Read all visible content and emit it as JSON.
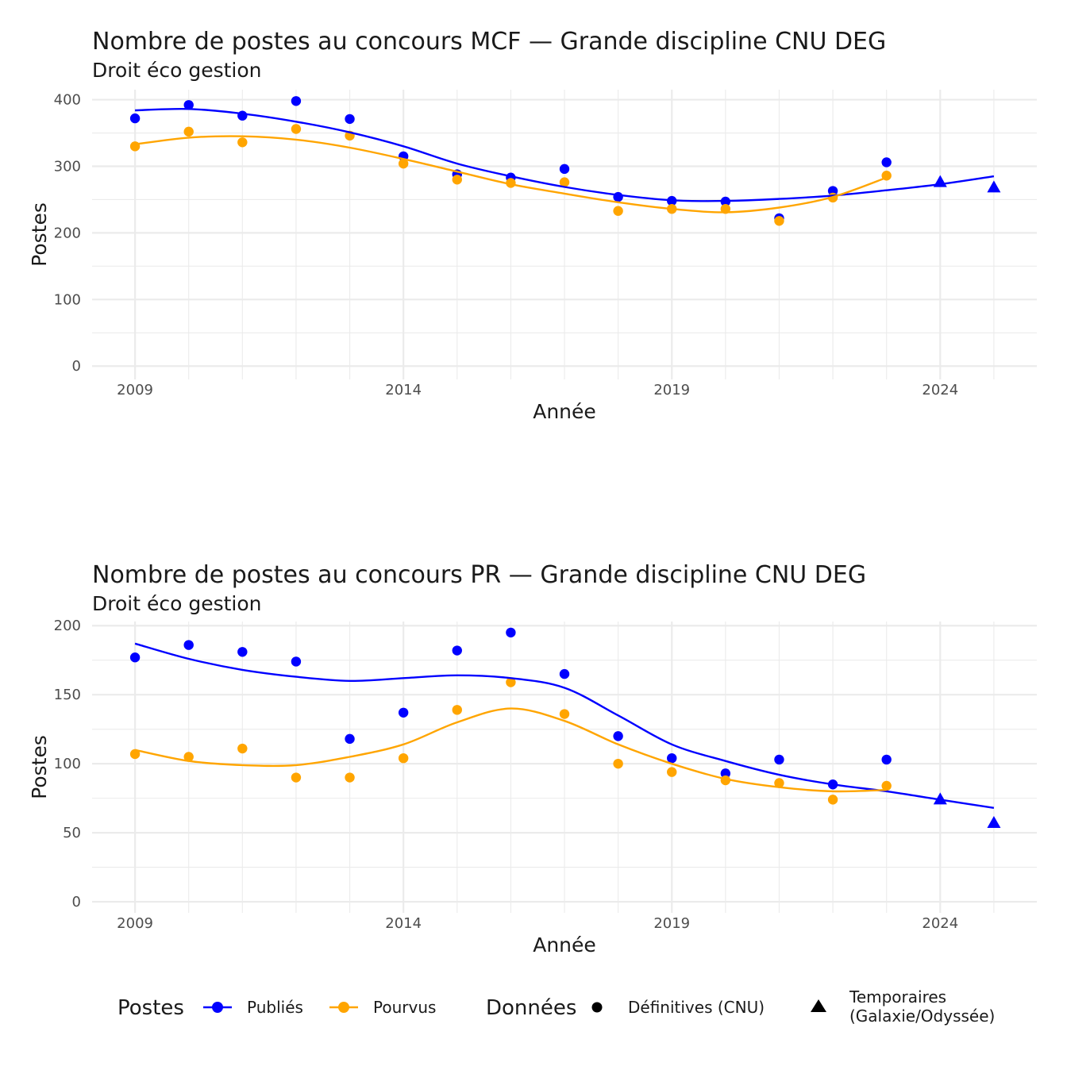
{
  "legend": {
    "color_title": "Postes",
    "color_items": [
      {
        "label": "Publiés",
        "color": "#0000ff"
      },
      {
        "label": "Pourvus",
        "color": "#ffa500"
      }
    ],
    "shape_title": "Données",
    "shape_items": [
      {
        "label": "Définitives (CNU)",
        "shape": "circle"
      },
      {
        "label_lines": [
          "Temporaires",
          "(Galaxie/Odyssée)"
        ],
        "shape": "triangle"
      }
    ]
  },
  "chart_data": [
    {
      "type": "scatter",
      "title": "Nombre de postes au concours MCF —  Grande discipline CNU DEG",
      "subtitle": "Droit éco gestion",
      "xlabel": "Année",
      "ylabel": "Postes",
      "xlim": [
        2008.2,
        2025.8
      ],
      "ylim": [
        -20,
        415
      ],
      "x_ticks": [
        2009,
        2014,
        2019,
        2024
      ],
      "y_ticks": [
        0,
        100,
        200,
        300,
        400
      ],
      "grid": true,
      "smooth": true,
      "series": [
        {
          "name": "Publiés",
          "color": "#0000ff",
          "points": [
            [
              2009,
              372
            ],
            [
              2010,
              392
            ],
            [
              2011,
              376
            ],
            [
              2012,
              398
            ],
            [
              2013,
              371
            ],
            [
              2014,
              315
            ],
            [
              2015,
              288
            ],
            [
              2016,
              283
            ],
            [
              2017,
              296
            ],
            [
              2018,
              254
            ],
            [
              2019,
              248
            ],
            [
              2020,
              247
            ],
            [
              2021,
              222
            ],
            [
              2022,
              263
            ],
            [
              2023,
              306
            ]
          ],
          "temporary_points": [
            [
              2024,
              276
            ],
            [
              2025,
              268
            ]
          ],
          "smooth_line": [
            [
              2009,
              384
            ],
            [
              2010,
              386
            ],
            [
              2011,
              379
            ],
            [
              2012,
              367
            ],
            [
              2013,
              351
            ],
            [
              2014,
              330
            ],
            [
              2015,
              304
            ],
            [
              2016,
              285
            ],
            [
              2017,
              269
            ],
            [
              2018,
              257
            ],
            [
              2019,
              249
            ],
            [
              2020,
              248
            ],
            [
              2021,
              251
            ],
            [
              2022,
              256
            ],
            [
              2023,
              264
            ],
            [
              2024,
              273
            ],
            [
              2025,
              285
            ]
          ]
        },
        {
          "name": "Pourvus",
          "color": "#ffa500",
          "points": [
            [
              2009,
              330
            ],
            [
              2010,
              352
            ],
            [
              2011,
              336
            ],
            [
              2012,
              356
            ],
            [
              2013,
              346
            ],
            [
              2014,
              304
            ],
            [
              2015,
              280
            ],
            [
              2016,
              275
            ],
            [
              2017,
              276
            ],
            [
              2018,
              233
            ],
            [
              2019,
              236
            ],
            [
              2020,
              236
            ],
            [
              2021,
              218
            ],
            [
              2022,
              253
            ],
            [
              2023,
              286
            ]
          ],
          "smooth_line": [
            [
              2009,
              333
            ],
            [
              2010,
              343
            ],
            [
              2011,
              345
            ],
            [
              2012,
              340
            ],
            [
              2013,
              328
            ],
            [
              2014,
              311
            ],
            [
              2015,
              292
            ],
            [
              2016,
              273
            ],
            [
              2017,
              259
            ],
            [
              2018,
              246
            ],
            [
              2019,
              236
            ],
            [
              2020,
              231
            ],
            [
              2021,
              238
            ],
            [
              2022,
              254
            ],
            [
              2023,
              283
            ]
          ]
        }
      ]
    },
    {
      "type": "scatter",
      "title": "Nombre de postes au concours PR —  Grande discipline CNU DEG",
      "subtitle": "Droit éco gestion",
      "xlabel": "Année",
      "ylabel": "Postes",
      "xlim": [
        2008.2,
        2025.8
      ],
      "ylim": [
        -8,
        203
      ],
      "x_ticks": [
        2009,
        2014,
        2019,
        2024
      ],
      "y_ticks": [
        0,
        50,
        100,
        150,
        200
      ],
      "grid": true,
      "smooth": true,
      "series": [
        {
          "name": "Publiés",
          "color": "#0000ff",
          "points": [
            [
              2009,
              177
            ],
            [
              2010,
              186
            ],
            [
              2011,
              181
            ],
            [
              2012,
              174
            ],
            [
              2013,
              118
            ],
            [
              2014,
              137
            ],
            [
              2015,
              182
            ],
            [
              2016,
              195
            ],
            [
              2017,
              165
            ],
            [
              2018,
              120
            ],
            [
              2019,
              104
            ],
            [
              2020,
              93
            ],
            [
              2021,
              103
            ],
            [
              2022,
              85
            ],
            [
              2023,
              103
            ]
          ],
          "temporary_points": [
            [
              2024,
              74
            ],
            [
              2025,
              57
            ]
          ],
          "smooth_line": [
            [
              2009,
              187
            ],
            [
              2010,
              176
            ],
            [
              2011,
              168
            ],
            [
              2012,
              163
            ],
            [
              2013,
              160
            ],
            [
              2014,
              162
            ],
            [
              2015,
              164
            ],
            [
              2016,
              162
            ],
            [
              2017,
              155
            ],
            [
              2018,
              135
            ],
            [
              2019,
              114
            ],
            [
              2020,
              102
            ],
            [
              2021,
              92
            ],
            [
              2022,
              85
            ],
            [
              2023,
              80
            ],
            [
              2024,
              74
            ],
            [
              2025,
              68
            ]
          ]
        },
        {
          "name": "Pourvus",
          "color": "#ffa500",
          "points": [
            [
              2009,
              107
            ],
            [
              2010,
              105
            ],
            [
              2011,
              111
            ],
            [
              2012,
              90
            ],
            [
              2013,
              90
            ],
            [
              2014,
              104
            ],
            [
              2015,
              139
            ],
            [
              2016,
              159
            ],
            [
              2017,
              136
            ],
            [
              2018,
              100
            ],
            [
              2019,
              94
            ],
            [
              2020,
              88
            ],
            [
              2021,
              86
            ],
            [
              2022,
              74
            ],
            [
              2023,
              84
            ]
          ],
          "smooth_line": [
            [
              2009,
              110
            ],
            [
              2010,
              102
            ],
            [
              2011,
              99
            ],
            [
              2012,
              99
            ],
            [
              2013,
              105
            ],
            [
              2014,
              114
            ],
            [
              2015,
              130
            ],
            [
              2016,
              140
            ],
            [
              2017,
              131
            ],
            [
              2018,
              114
            ],
            [
              2019,
              100
            ],
            [
              2020,
              89
            ],
            [
              2021,
              83
            ],
            [
              2022,
              80
            ],
            [
              2023,
              81
            ]
          ]
        }
      ]
    }
  ]
}
